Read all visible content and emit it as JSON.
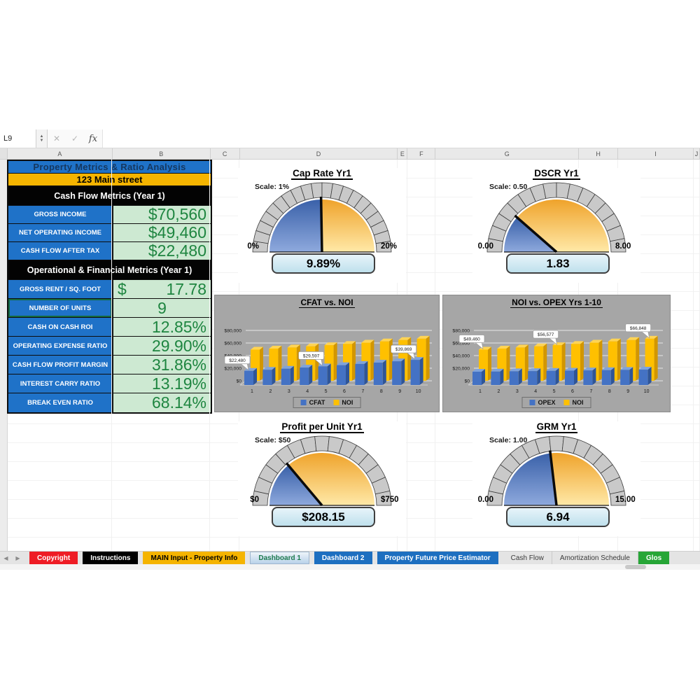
{
  "chrome": {
    "name_box": "L9",
    "formula_bar_value": "",
    "cancel_glyph": "✕",
    "enter_glyph": "✓",
    "fx_label": "fx",
    "tab_scroll_left": "◀",
    "tab_scroll_right": "▶",
    "column_headers": [
      "A",
      "B",
      "C",
      "D",
      "E",
      "F",
      "G",
      "H",
      "I",
      "J"
    ],
    "sheet_tabs": [
      {
        "label": "Copyright",
        "bg": "#EE1C25",
        "fg": "#FFFFFF",
        "active": false
      },
      {
        "label": "Instructions",
        "bg": "#000000",
        "fg": "#FFFFFF",
        "active": false
      },
      {
        "label": "MAIN Input - Property Info",
        "bg": "#F5B400",
        "fg": "#000000",
        "active": false
      },
      {
        "label": "Dashboard 1",
        "bg": "#C9D9EC",
        "fg": "#1E7B4F",
        "active": true
      },
      {
        "label": "Dashboard 2",
        "bg": "#1D6FC0",
        "fg": "#FFFFFF",
        "active": false
      },
      {
        "label": "Property Future Price Estimator",
        "bg": "#1D6FC0",
        "fg": "#FFFFFF",
        "active": false
      },
      {
        "label": "Cash Flow",
        "bg": "#E8E8E8",
        "fg": "#3A3A3A",
        "active": false
      },
      {
        "label": "Amortization Schedule",
        "bg": "#E8E8E8",
        "fg": "#3A3A3A",
        "active": false
      },
      {
        "label": "Glos",
        "bg": "#27A637",
        "fg": "#FFFFFF",
        "active": false
      }
    ]
  },
  "metrics_table": {
    "title": "Property Metrics & Ratio Analysis",
    "address": "123 Main street",
    "sections": [
      {
        "header": "Cash Flow Metrics (Year 1)",
        "rows": [
          {
            "label": "GROSS INCOME",
            "value": "$70,560"
          },
          {
            "label": "NET OPERATING INCOME",
            "value": "$49,460"
          },
          {
            "label": "CASH FLOW AFTER TAX",
            "value": "$22,480"
          }
        ]
      },
      {
        "header": "Operational & Financial Metrics (Year 1)",
        "rows": [
          {
            "label": "GROSS RENT / SQ. FOOT",
            "prefix": "$",
            "value": "17.78"
          },
          {
            "label": "NUMBER OF UNITS",
            "value": "9",
            "align": "center",
            "selected": true
          },
          {
            "label": "CASH ON CASH ROI",
            "value": "12.85%"
          },
          {
            "label": "OPERATING EXPENSE RATIO",
            "value": "29.90%"
          },
          {
            "label": "CASH FLOW PROFIT MARGIN",
            "value": "31.86%"
          },
          {
            "label": "INTEREST CARRY RATIO",
            "value": "13.19%"
          },
          {
            "label": "BREAK EVEN RATIO",
            "value": "68.14%"
          }
        ]
      }
    ]
  },
  "gauges": [
    {
      "id": "cap-rate",
      "title": "Cap Rate Yr1",
      "scale_label": "Scale: 1%",
      "min": 0,
      "max": 20,
      "step": 1,
      "value": 9.89,
      "value_label": "9.89%",
      "min_label": "0%",
      "max_label": "20%"
    },
    {
      "id": "dscr",
      "title": "DSCR Yr1",
      "scale_label": "Scale: 0.50",
      "min": 0,
      "max": 8,
      "step": 0.5,
      "value": 1.83,
      "value_label": "1.83",
      "min_label": "0.00",
      "max_label": "8.00"
    },
    {
      "id": "profit-per-unit",
      "title": "Profit per Unit Yr1",
      "scale_label": "Scale: $50",
      "min": 0,
      "max": 750,
      "step": 50,
      "value": 208.15,
      "value_label": "$208.15",
      "min_label": "$0",
      "max_label": "$750"
    },
    {
      "id": "grm",
      "title": "GRM Yr1",
      "scale_label": "Scale: 1.00",
      "min": 0,
      "max": 15,
      "step": 1,
      "value": 6.94,
      "value_label": "6.94",
      "min_label": "0.00",
      "max_label": "15.00"
    }
  ],
  "chart_data": [
    {
      "type": "bar",
      "title": "CFAT vs. NOI",
      "categories": [
        1,
        2,
        3,
        4,
        5,
        6,
        7,
        8,
        9,
        10
      ],
      "series": [
        {
          "name": "CFAT",
          "color": "#4472C4",
          "side": "#2F5597",
          "top": "#7FA3DC",
          "values": [
            22480,
            24150,
            25880,
            27690,
            29597,
            31480,
            33450,
            35500,
            37640,
            39869
          ]
        },
        {
          "name": "NOI",
          "color": "#FFC000",
          "side": "#D29600",
          "top": "#FFD454",
          "values": [
            49460,
            51150,
            52900,
            54700,
            56577,
            58500,
            60500,
            62560,
            64670,
            66848
          ]
        }
      ],
      "ylim": [
        0,
        80000
      ],
      "yticks": [
        "$0",
        "$20,000",
        "$40,000",
        "$60,000",
        "$80,000"
      ],
      "grid": true,
      "legend": [
        "CFAT",
        "NOI"
      ],
      "legend_position": "bottom",
      "data_labels": [
        {
          "series": 0,
          "index": 0,
          "text": "$22,480"
        },
        {
          "series": 0,
          "index": 4,
          "text": "$29,597"
        },
        {
          "series": 0,
          "index": 9,
          "text": "$39,869"
        }
      ]
    },
    {
      "type": "bar",
      "title": "NOI vs. OPEX Yrs 1-10",
      "categories": [
        1,
        2,
        3,
        4,
        5,
        6,
        7,
        8,
        9,
        10
      ],
      "series": [
        {
          "name": "OPEX",
          "color": "#4472C4",
          "side": "#2F5597",
          "top": "#7FA3DC",
          "values": [
            21100,
            21400,
            21800,
            22100,
            22500,
            22800,
            23200,
            23600,
            24000,
            24400
          ]
        },
        {
          "name": "NOI",
          "color": "#FFC000",
          "side": "#D29600",
          "top": "#FFD454",
          "values": [
            49460,
            51150,
            52900,
            54700,
            56577,
            58500,
            60500,
            62560,
            64670,
            66848
          ]
        }
      ],
      "ylim": [
        0,
        80000
      ],
      "yticks": [
        "$0",
        "$20,000",
        "$40,000",
        "$60,000",
        "$80,000"
      ],
      "grid": true,
      "legend": [
        "OPEX",
        "NOI"
      ],
      "legend_position": "bottom",
      "data_labels": [
        {
          "series": 1,
          "index": 0,
          "text": "$49,460"
        },
        {
          "series": 1,
          "index": 4,
          "text": "$56,577"
        },
        {
          "series": 1,
          "index": 9,
          "text": "$66,848"
        }
      ]
    }
  ],
  "colors": {
    "gauge_blue": "#4472C4",
    "gauge_yellow": "#F5A623",
    "gauge_ring": "#C9C9C9",
    "panel_gray": "#A6A6A6",
    "value_cell_bg": "#CDE9D2",
    "value_cell_fg": "#1E8540",
    "label_cell_blue": "#1F72C8",
    "selection_green": "#156B3F"
  }
}
